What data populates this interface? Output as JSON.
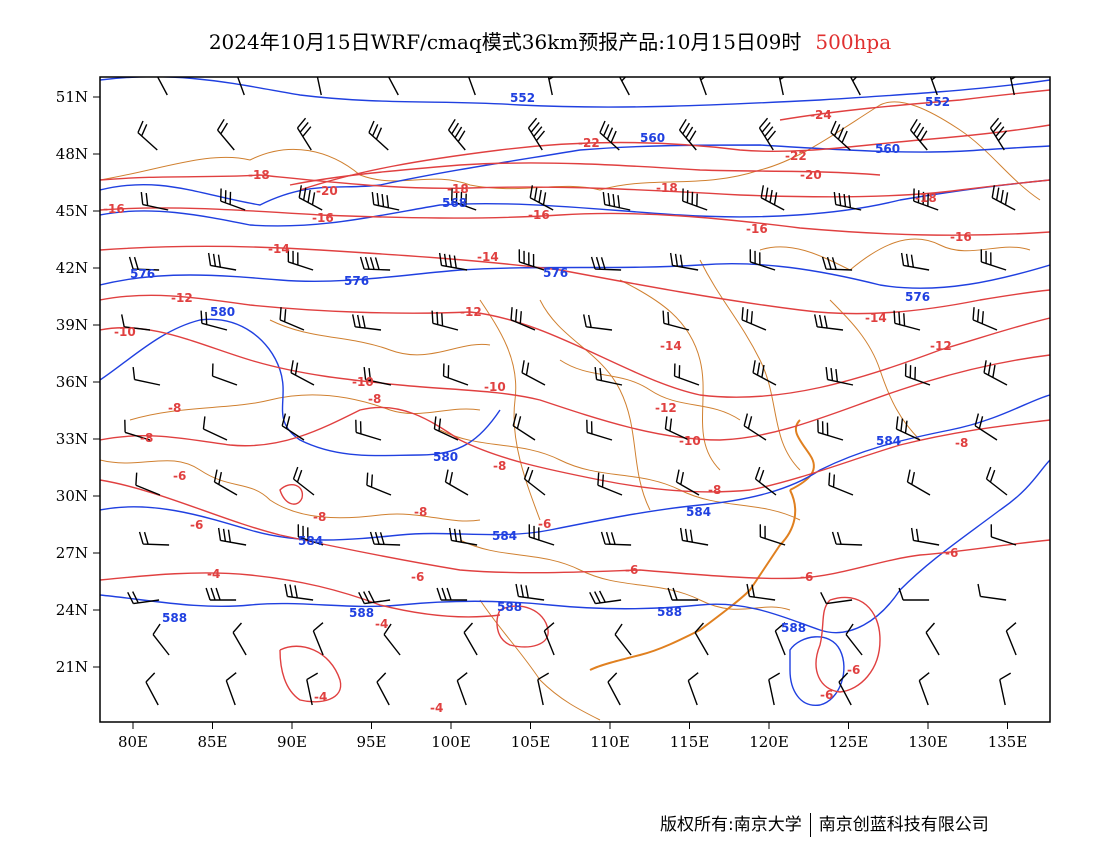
{
  "title": {
    "main": "2024年10月15日WRF/cmaq模式36km预报产品:10月15日09时",
    "level": "500hpa",
    "level_color": "#e03030"
  },
  "colors": {
    "temperature_contour": "#e04040",
    "height_contour": "#2040e0",
    "boundary": "#d08030",
    "wind_barb": "#000000"
  },
  "axes": {
    "lon_labels": [
      "80E",
      "85E",
      "90E",
      "95E",
      "100E",
      "105E",
      "110E",
      "115E",
      "120E",
      "125E",
      "130E",
      "135E"
    ],
    "lat_labels": [
      "51N",
      "48N",
      "45N",
      "42N",
      "39N",
      "36N",
      "33N",
      "30N",
      "27N",
      "24N",
      "21N"
    ]
  },
  "height_labels": [
    "552",
    "560",
    "568",
    "576",
    "580",
    "584",
    "588"
  ],
  "temperature_labels": [
    "-24",
    "-22",
    "-20",
    "-18",
    "-16",
    "-14",
    "-12",
    "-10",
    "-8",
    "-6",
    "-4"
  ],
  "footer": {
    "owner": "版权所有:南京大学",
    "company": "南京创蓝科技有限公司"
  }
}
